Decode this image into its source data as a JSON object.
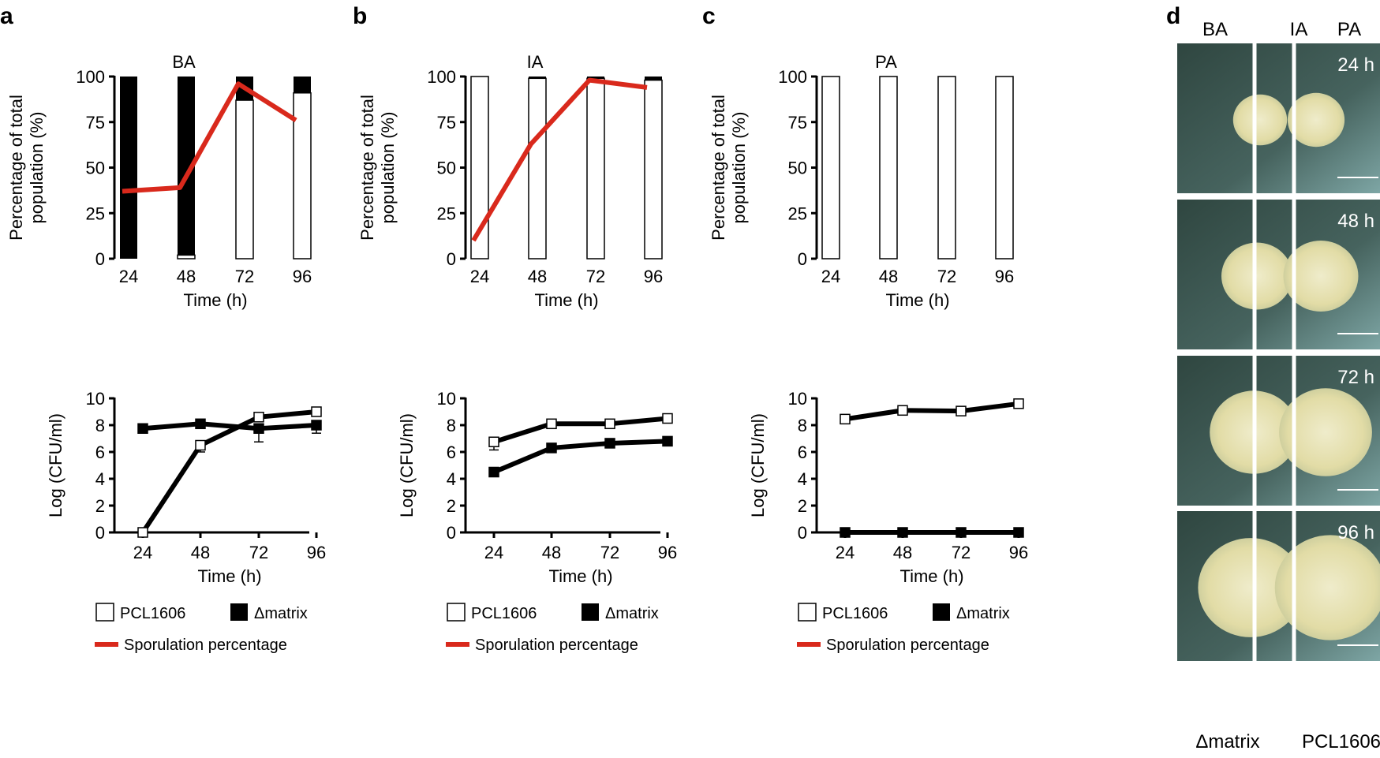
{
  "colors": {
    "spor": "#d9291c",
    "black": "#000000",
    "white": "#ffffff",
    "photo_bg": "#3f5a55",
    "colony": "#e6e2b0"
  },
  "chart_data": [
    {
      "panel": "a",
      "type": "bar",
      "title": "BA",
      "xlabel": "Time (h)",
      "ylabel": [
        "Percentage of total",
        "population  (%)"
      ],
      "categories": [
        "24",
        "48",
        "72",
        "96"
      ],
      "ylim": [
        0,
        100
      ],
      "yticks": [
        0,
        25,
        50,
        75,
        100
      ],
      "series": [
        {
          "name": "PCL1606",
          "values": [
            0,
            2,
            87,
            91
          ]
        },
        {
          "name": "Δmatrix",
          "values": [
            100,
            98,
            13,
            9
          ]
        },
        {
          "name": "Sporulation percentage",
          "type": "line",
          "values": [
            37,
            39,
            96,
            76
          ]
        }
      ]
    },
    {
      "panel": "b",
      "type": "bar",
      "title": "IA",
      "xlabel": "Time (h)",
      "ylabel": [
        "Percentage of total",
        "population  (%)"
      ],
      "categories": [
        "24",
        "48",
        "72",
        "96"
      ],
      "ylim": [
        0,
        100
      ],
      "yticks": [
        0,
        25,
        50,
        75,
        100
      ],
      "series": [
        {
          "name": "PCL1606",
          "values": [
            100,
            99,
            99,
            98
          ]
        },
        {
          "name": "Δmatrix",
          "values": [
            0,
            1,
            1,
            2
          ]
        },
        {
          "name": "Sporulation percentage",
          "type": "line",
          "values": [
            10,
            63,
            98,
            94
          ]
        }
      ]
    },
    {
      "panel": "c",
      "type": "bar",
      "title": "PA",
      "xlabel": "Time (h)",
      "ylabel": [
        "Percentage of total",
        "population  (%)"
      ],
      "categories": [
        "24",
        "48",
        "72",
        "96"
      ],
      "ylim": [
        0,
        100
      ],
      "yticks": [
        0,
        25,
        50,
        75,
        100
      ],
      "series": [
        {
          "name": "PCL1606",
          "values": [
            100,
            100,
            100,
            100
          ]
        },
        {
          "name": "Δmatrix",
          "values": [
            0,
            0,
            0,
            0
          ]
        }
      ]
    },
    {
      "panel": "a-bottom",
      "type": "line",
      "xlabel": "Time (h)",
      "ylabel": "Log (CFU/ml)",
      "x": [
        "24",
        "48",
        "72",
        "96"
      ],
      "ylim": [
        0,
        10
      ],
      "yticks": [
        0,
        2,
        4,
        6,
        8,
        10
      ],
      "series": [
        {
          "name": "PCL1606",
          "values": [
            0,
            6.5,
            8.6,
            9.0
          ],
          "err": [
            0,
            0.5,
            0.3,
            0.3
          ]
        },
        {
          "name": "Δmatrix",
          "values": [
            7.75,
            8.1,
            7.75,
            8.0
          ],
          "err": [
            0.1,
            0.1,
            1.0,
            0.6
          ]
        }
      ]
    },
    {
      "panel": "b-bottom",
      "type": "line",
      "xlabel": "Time (h)",
      "ylabel": "Log (CFU/ml)",
      "x": [
        "24",
        "48",
        "72",
        "96"
      ],
      "ylim": [
        0,
        10
      ],
      "yticks": [
        0,
        2,
        4,
        6,
        8,
        10
      ],
      "series": [
        {
          "name": "PCL1606",
          "values": [
            6.75,
            8.1,
            8.1,
            8.5
          ],
          "err": [
            0.6,
            0.3,
            0.2,
            0.1
          ]
        },
        {
          "name": "Δmatrix",
          "values": [
            4.5,
            6.3,
            6.65,
            6.8
          ],
          "err": [
            0.1,
            0.1,
            0.1,
            0.1
          ]
        }
      ]
    },
    {
      "panel": "c-bottom",
      "type": "line",
      "xlabel": "Time (h)",
      "ylabel": "Log (CFU/ml)",
      "x": [
        "24",
        "48",
        "72",
        "96"
      ],
      "ylim": [
        0,
        10
      ],
      "yticks": [
        0,
        2,
        4,
        6,
        8,
        10
      ],
      "series": [
        {
          "name": "PCL1606",
          "values": [
            8.45,
            9.1,
            9.05,
            9.6
          ],
          "err": [
            0.3,
            0.1,
            0.1,
            0.1
          ]
        },
        {
          "name": "Δmatrix",
          "values": [
            0,
            0,
            0,
            0
          ],
          "err": [
            0,
            0,
            0,
            0
          ]
        }
      ]
    }
  ],
  "panel_labels": [
    "a",
    "b",
    "c",
    "d"
  ],
  "legend": {
    "pcl": "PCL1606",
    "matrix": "Δmatrix",
    "spor": "Sporulation percentage"
  },
  "photos": {
    "columns": [
      "BA",
      "IA",
      "PA"
    ],
    "times": [
      "24 h",
      "48 h",
      "72 h",
      "96 h"
    ],
    "bottom_labels": [
      "Δmatrix",
      "PCL1606"
    ]
  }
}
